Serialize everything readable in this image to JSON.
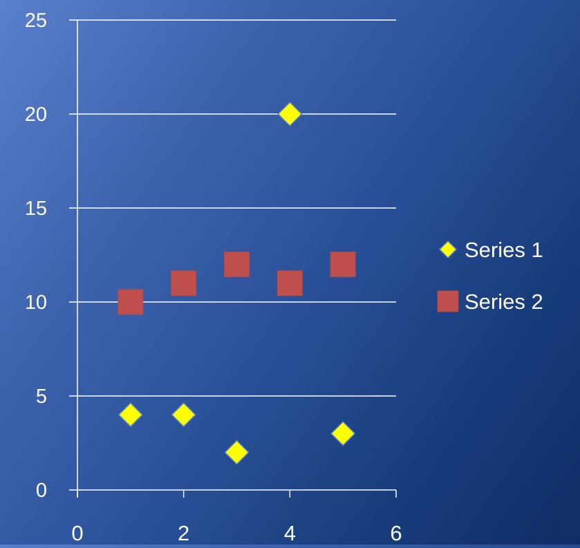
{
  "chart_data": {
    "type": "scatter",
    "title": "",
    "xlabel": "",
    "ylabel": "",
    "xlim": [
      0,
      6
    ],
    "ylim": [
      0,
      25
    ],
    "x_ticks": [
      0,
      2,
      4,
      6
    ],
    "y_ticks": [
      0,
      5,
      10,
      15,
      20,
      25
    ],
    "x_tick_labels": [
      "0",
      "2",
      "4",
      "6"
    ],
    "y_tick_labels": [
      "0",
      "5",
      "10",
      "15",
      "20",
      "25"
    ],
    "grid": "horizontal",
    "legend_position": "right",
    "series": [
      {
        "name": "Series 1",
        "marker": "diamond",
        "color": "#ffff00",
        "points": [
          {
            "x": 1,
            "y": 4
          },
          {
            "x": 2,
            "y": 4
          },
          {
            "x": 3,
            "y": 2
          },
          {
            "x": 4,
            "y": 20
          },
          {
            "x": 5,
            "y": 3
          }
        ]
      },
      {
        "name": "Series 2",
        "marker": "square",
        "color": "#c0504d",
        "points": [
          {
            "x": 1,
            "y": 10
          },
          {
            "x": 2,
            "y": 11
          },
          {
            "x": 3,
            "y": 12
          },
          {
            "x": 4,
            "y": 11
          },
          {
            "x": 5,
            "y": 12
          }
        ]
      }
    ]
  }
}
